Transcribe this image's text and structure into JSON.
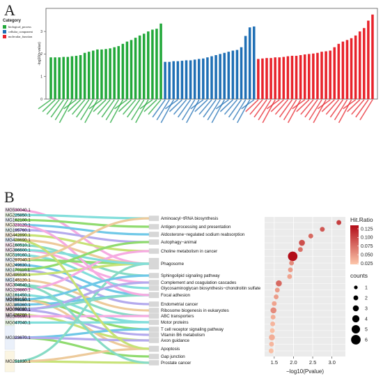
{
  "panels": {
    "a_label": "A",
    "b_label": "B"
  },
  "colors": {
    "biological_process": "#22a83a",
    "cellular_component": "#1f6fb5",
    "molecular_function": "#e8232b"
  },
  "chart_data": [
    {
      "id": "go_bar",
      "type": "bar",
      "ylabel": "-log10(p-value)",
      "yticks": [
        0,
        1,
        2,
        3
      ],
      "legend": {
        "title": "Category",
        "items": [
          "biological_process",
          "cellular_component",
          "molecular_function"
        ],
        "placement": "top-left"
      },
      "groups": [
        {
          "name": "biological_process",
          "values": [
            1.85,
            1.85,
            1.85,
            1.87,
            1.87,
            1.9,
            1.92,
            1.95,
            2.05,
            2.1,
            2.15,
            2.2,
            2.2,
            2.22,
            2.25,
            2.3,
            2.35,
            2.45,
            2.55,
            2.62,
            2.72,
            2.82,
            2.9,
            3.0,
            3.08,
            3.12,
            3.35
          ]
        },
        {
          "name": "cellular_component",
          "values": [
            1.65,
            1.65,
            1.68,
            1.68,
            1.7,
            1.72,
            1.72,
            1.75,
            1.78,
            1.8,
            1.85,
            1.9,
            1.95,
            2.0,
            2.05,
            2.1,
            2.15,
            2.18,
            2.3,
            2.8,
            3.18,
            3.22
          ]
        },
        {
          "name": "molecular_function",
          "values": [
            1.78,
            1.8,
            1.82,
            1.82,
            1.85,
            1.85,
            1.87,
            1.9,
            1.92,
            1.92,
            1.95,
            1.98,
            2.0,
            2.02,
            2.05,
            2.1,
            2.12,
            2.15,
            2.3,
            2.45,
            2.55,
            2.62,
            2.7,
            2.82,
            3.0,
            3.15,
            3.48,
            3.75
          ]
        }
      ]
    },
    {
      "id": "sankey",
      "type": "sankey",
      "genes": [
        "MG530040.1",
        "MG225850.1",
        "MG162100.1",
        "MG323120.1",
        "MG195760.1",
        "MG442890.1",
        "MG428690.1",
        "MG160510.1",
        "MG386600.1",
        "MG519160.1",
        "MG297040.1",
        "MG249630.1",
        "MG170110.1",
        "MG495530.1",
        "MG145120.1",
        "MG304640.1",
        "MG229860.1",
        "MG161450.1",
        "MG153150.1",
        "MG385360.1",
        "MG076030.1",
        "MG426200.1",
        "MG069150.1",
        "MG069080.1",
        "MG305590.1",
        "MG047040.1",
        "MG323670.1",
        "MG251830.1"
      ],
      "pathways": [
        "Aminoacyl−tRNA biosynthesis",
        "Antigen processing and presentation",
        "Aldosterone−regulated sodium reabsorption",
        "Autophagy−animal",
        "Choline metabolism in cancer",
        "Phagosome",
        "Sphingolipid signaling pathway",
        "Complement and coagulation cascades",
        "Glycosaminoglycan biosynthesis−chondroitin sulfate",
        "Focal adhesion",
        "Endometrial cancer",
        "Ribosome biogenesis in eukaryotes",
        "ABC transporters",
        "Motor proteins",
        "T cell receptor signaling pathway",
        "Vitamin B6 metabolism",
        "Axon guidance",
        "Apoptosis",
        "Gap junction",
        "Prostate cancer"
      ]
    },
    {
      "id": "kegg_dot",
      "type": "scatter",
      "xlabel": "−log10(Pvalue)",
      "xticks": [
        "1.5",
        "2.0",
        "2.5",
        "3.0"
      ],
      "xlim": [
        1.25,
        3.35
      ],
      "size_legend": {
        "title": "counts",
        "labels": [
          "1",
          "2",
          "3",
          "4",
          "5",
          "6"
        ]
      },
      "color_legend": {
        "title": "Hit.Ratio",
        "labels": [
          "0.125",
          "0.100",
          "0.075",
          "0.050",
          "0.025"
        ]
      },
      "points": [
        {
          "x": 3.18,
          "hit": 0.105,
          "count": 2
        },
        {
          "x": 2.75,
          "hit": 0.09,
          "count": 2
        },
        {
          "x": 2.45,
          "hit": 0.08,
          "count": 2
        },
        {
          "x": 2.22,
          "hit": 0.095,
          "count": 3
        },
        {
          "x": 2.18,
          "hit": 0.075,
          "count": 2
        },
        {
          "x": 1.98,
          "hit": 0.135,
          "count": 6
        },
        {
          "x": 1.95,
          "hit": 0.06,
          "count": 2
        },
        {
          "x": 1.92,
          "hit": 0.05,
          "count": 2
        },
        {
          "x": 1.9,
          "hit": 0.045,
          "count": 2
        },
        {
          "x": 1.62,
          "hit": 0.08,
          "count": 3
        },
        {
          "x": 1.58,
          "hit": 0.05,
          "count": 2
        },
        {
          "x": 1.55,
          "hit": 0.05,
          "count": 2
        },
        {
          "x": 1.5,
          "hit": 0.045,
          "count": 2
        },
        {
          "x": 1.48,
          "hit": 0.06,
          "count": 3
        },
        {
          "x": 1.47,
          "hit": 0.04,
          "count": 2
        },
        {
          "x": 1.46,
          "hit": 0.035,
          "count": 2
        },
        {
          "x": 1.45,
          "hit": 0.03,
          "count": 2
        },
        {
          "x": 1.44,
          "hit": 0.04,
          "count": 3
        },
        {
          "x": 1.43,
          "hit": 0.035,
          "count": 2
        },
        {
          "x": 1.42,
          "hit": 0.03,
          "count": 2
        }
      ]
    }
  ]
}
